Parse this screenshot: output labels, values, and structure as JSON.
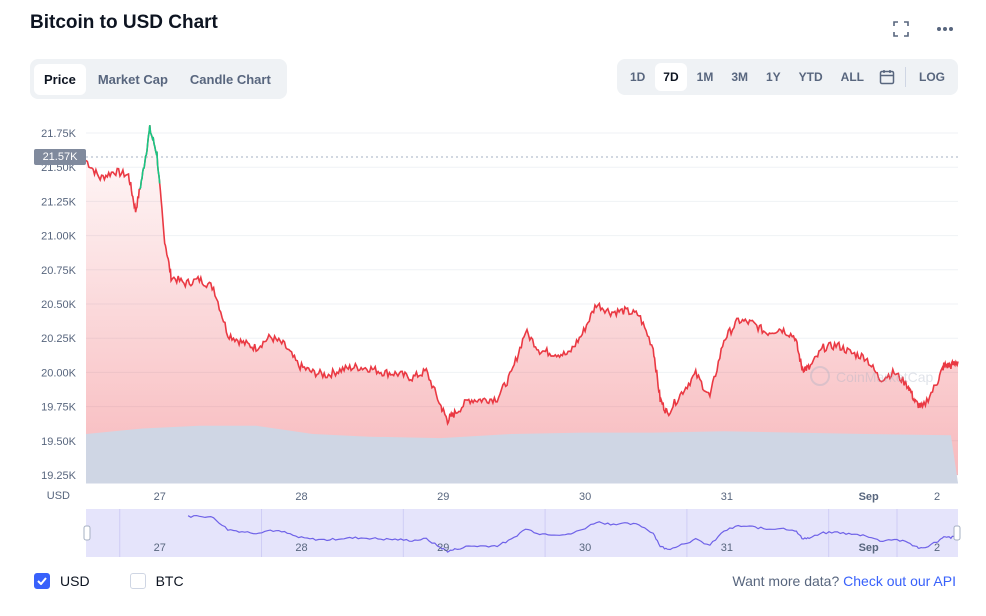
{
  "header": {
    "title": "Bitcoin to USD Chart",
    "icons": [
      "fullscreen-icon",
      "more-icon"
    ]
  },
  "tabs": [
    "Price",
    "Market Cap",
    "Candle Chart"
  ],
  "ranges": [
    "1D",
    "7D",
    "1M",
    "3M",
    "1Y",
    "YTD",
    "ALL"
  ],
  "log_label": "LOG",
  "current_price_tag": "21.57K",
  "watermark": "CoinMarketCap",
  "footer": {
    "usd_label": "USD",
    "btc_label": "BTC",
    "more_data": "Want more data?",
    "api_link": "Check out our API"
  },
  "colors": {
    "line": "#ea3943",
    "spike": "#16c784",
    "volume": "#cfd6e4",
    "nav": "#e5e4fb",
    "nav_line": "#6f62e8"
  },
  "chart_data": {
    "type": "line",
    "currency_label": "USD",
    "y_ticks": [
      "21.75K",
      "21.50K",
      "21.25K",
      "21.00K",
      "20.75K",
      "20.50K",
      "20.25K",
      "20.00K",
      "19.75K",
      "19.50K",
      "19.25K"
    ],
    "x_ticks": [
      "27",
      "28",
      "29",
      "30",
      "31",
      "Sep",
      "2"
    ],
    "ylim": [
      19250,
      21750
    ],
    "price_series": [
      [
        0,
        21550
      ],
      [
        0.1,
        21420
      ],
      [
        0.2,
        21470
      ],
      [
        0.3,
        21440
      ],
      [
        0.35,
        21180
      ],
      [
        0.4,
        21450
      ],
      [
        0.45,
        21780
      ],
      [
        0.5,
        21600
      ],
      [
        0.55,
        21000
      ],
      [
        0.6,
        20700
      ],
      [
        0.7,
        20650
      ],
      [
        0.8,
        20680
      ],
      [
        0.9,
        20620
      ],
      [
        1.0,
        20280
      ],
      [
        1.1,
        20220
      ],
      [
        1.2,
        20180
      ],
      [
        1.3,
        20260
      ],
      [
        1.4,
        20200
      ],
      [
        1.5,
        20050
      ],
      [
        1.6,
        20000
      ],
      [
        1.7,
        19980
      ],
      [
        1.8,
        20020
      ],
      [
        1.9,
        20040
      ],
      [
        2.0,
        20030
      ],
      [
        2.1,
        20000
      ],
      [
        2.2,
        19990
      ],
      [
        2.3,
        19960
      ],
      [
        2.4,
        20010
      ],
      [
        2.5,
        19760
      ],
      [
        2.55,
        19650
      ],
      [
        2.6,
        19700
      ],
      [
        2.7,
        19800
      ],
      [
        2.8,
        19800
      ],
      [
        2.9,
        19810
      ],
      [
        3.0,
        19990
      ],
      [
        3.1,
        20300
      ],
      [
        3.2,
        20160
      ],
      [
        3.3,
        20140
      ],
      [
        3.4,
        20130
      ],
      [
        3.5,
        20280
      ],
      [
        3.6,
        20500
      ],
      [
        3.7,
        20440
      ],
      [
        3.8,
        20450
      ],
      [
        3.9,
        20420
      ],
      [
        4.0,
        20180
      ],
      [
        4.05,
        19800
      ],
      [
        4.1,
        19700
      ],
      [
        4.2,
        19850
      ],
      [
        4.3,
        19990
      ],
      [
        4.4,
        19820
      ],
      [
        4.5,
        20240
      ],
      [
        4.6,
        20380
      ],
      [
        4.7,
        20360
      ],
      [
        4.8,
        20290
      ],
      [
        4.9,
        20320
      ],
      [
        5.0,
        20260
      ],
      [
        5.05,
        20030
      ],
      [
        5.1,
        20030
      ],
      [
        5.2,
        20180
      ],
      [
        5.3,
        20200
      ],
      [
        5.4,
        20140
      ],
      [
        5.5,
        20110
      ],
      [
        5.6,
        19950
      ],
      [
        5.7,
        20000
      ],
      [
        5.8,
        19900
      ],
      [
        5.85,
        19780
      ],
      [
        5.9,
        19740
      ],
      [
        6.0,
        19920
      ],
      [
        6.05,
        20050
      ],
      [
        6.1,
        20050
      ],
      [
        6.15,
        20080
      ]
    ],
    "volume_series": [
      [
        0,
        19550
      ],
      [
        0.4,
        19590
      ],
      [
        0.8,
        19610
      ],
      [
        1.2,
        19610
      ],
      [
        1.6,
        19550
      ],
      [
        2.0,
        19530
      ],
      [
        2.5,
        19520
      ],
      [
        3.0,
        19550
      ],
      [
        3.5,
        19560
      ],
      [
        4.0,
        19560
      ],
      [
        4.5,
        19570
      ],
      [
        5.0,
        19560
      ],
      [
        5.5,
        19550
      ],
      [
        6.1,
        19540
      ]
    ]
  }
}
